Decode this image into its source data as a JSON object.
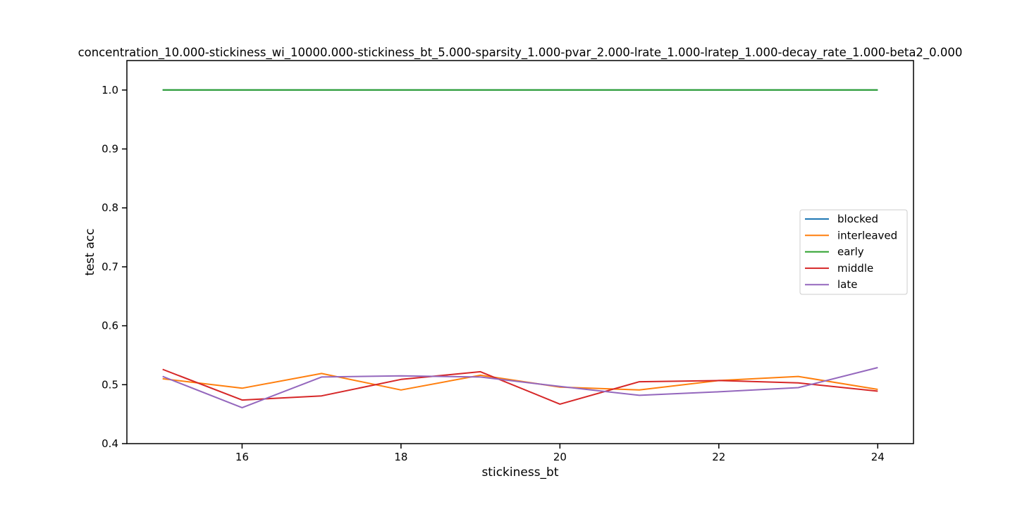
{
  "chart_data": {
    "type": "line",
    "title": "concentration_10.000-stickiness_wi_10000.000-stickiness_bt_5.000-sparsity_1.000-pvar_2.000-lrate_1.000-lratep_1.000-decay_rate_1.000-beta2_0.000",
    "xlabel": "stickiness_bt",
    "ylabel": "test acc",
    "xlim": [
      14.55,
      24.45
    ],
    "ylim": [
      0.4,
      1.05
    ],
    "xticks": [
      16,
      18,
      20,
      22,
      24
    ],
    "xtick_labels": [
      "16",
      "18",
      "20",
      "22",
      "24"
    ],
    "yticks": [
      0.4,
      0.5,
      0.6,
      0.7,
      0.8,
      0.9,
      1.0
    ],
    "ytick_labels": [
      "0.4",
      "0.5",
      "0.6",
      "0.7",
      "0.8",
      "0.9",
      "1.0"
    ],
    "grid": false,
    "legend_position": "center-right",
    "x": [
      15,
      16,
      17,
      18,
      19,
      20,
      21,
      22,
      23,
      24
    ],
    "series": [
      {
        "name": "blocked",
        "color": "#1f77b4",
        "values": [
          1.0,
          1.0,
          1.0,
          1.0,
          1.0,
          1.0,
          1.0,
          1.0,
          1.0,
          1.0
        ]
      },
      {
        "name": "interleaved",
        "color": "#ff7f0e",
        "values": [
          0.51,
          0.494,
          0.519,
          0.491,
          0.516,
          0.496,
          0.491,
          0.507,
          0.514,
          0.492
        ]
      },
      {
        "name": "early",
        "color": "#2ca02c",
        "values": [
          1.0,
          1.0,
          1.0,
          1.0,
          1.0,
          1.0,
          1.0,
          1.0,
          1.0,
          1.0
        ]
      },
      {
        "name": "middle",
        "color": "#d62728",
        "values": [
          0.526,
          0.474,
          0.481,
          0.509,
          0.522,
          0.467,
          0.505,
          0.507,
          0.503,
          0.489
        ]
      },
      {
        "name": "late",
        "color": "#9467bd",
        "values": [
          0.514,
          0.461,
          0.513,
          0.515,
          0.513,
          0.497,
          0.482,
          0.488,
          0.495,
          0.529
        ]
      }
    ]
  }
}
